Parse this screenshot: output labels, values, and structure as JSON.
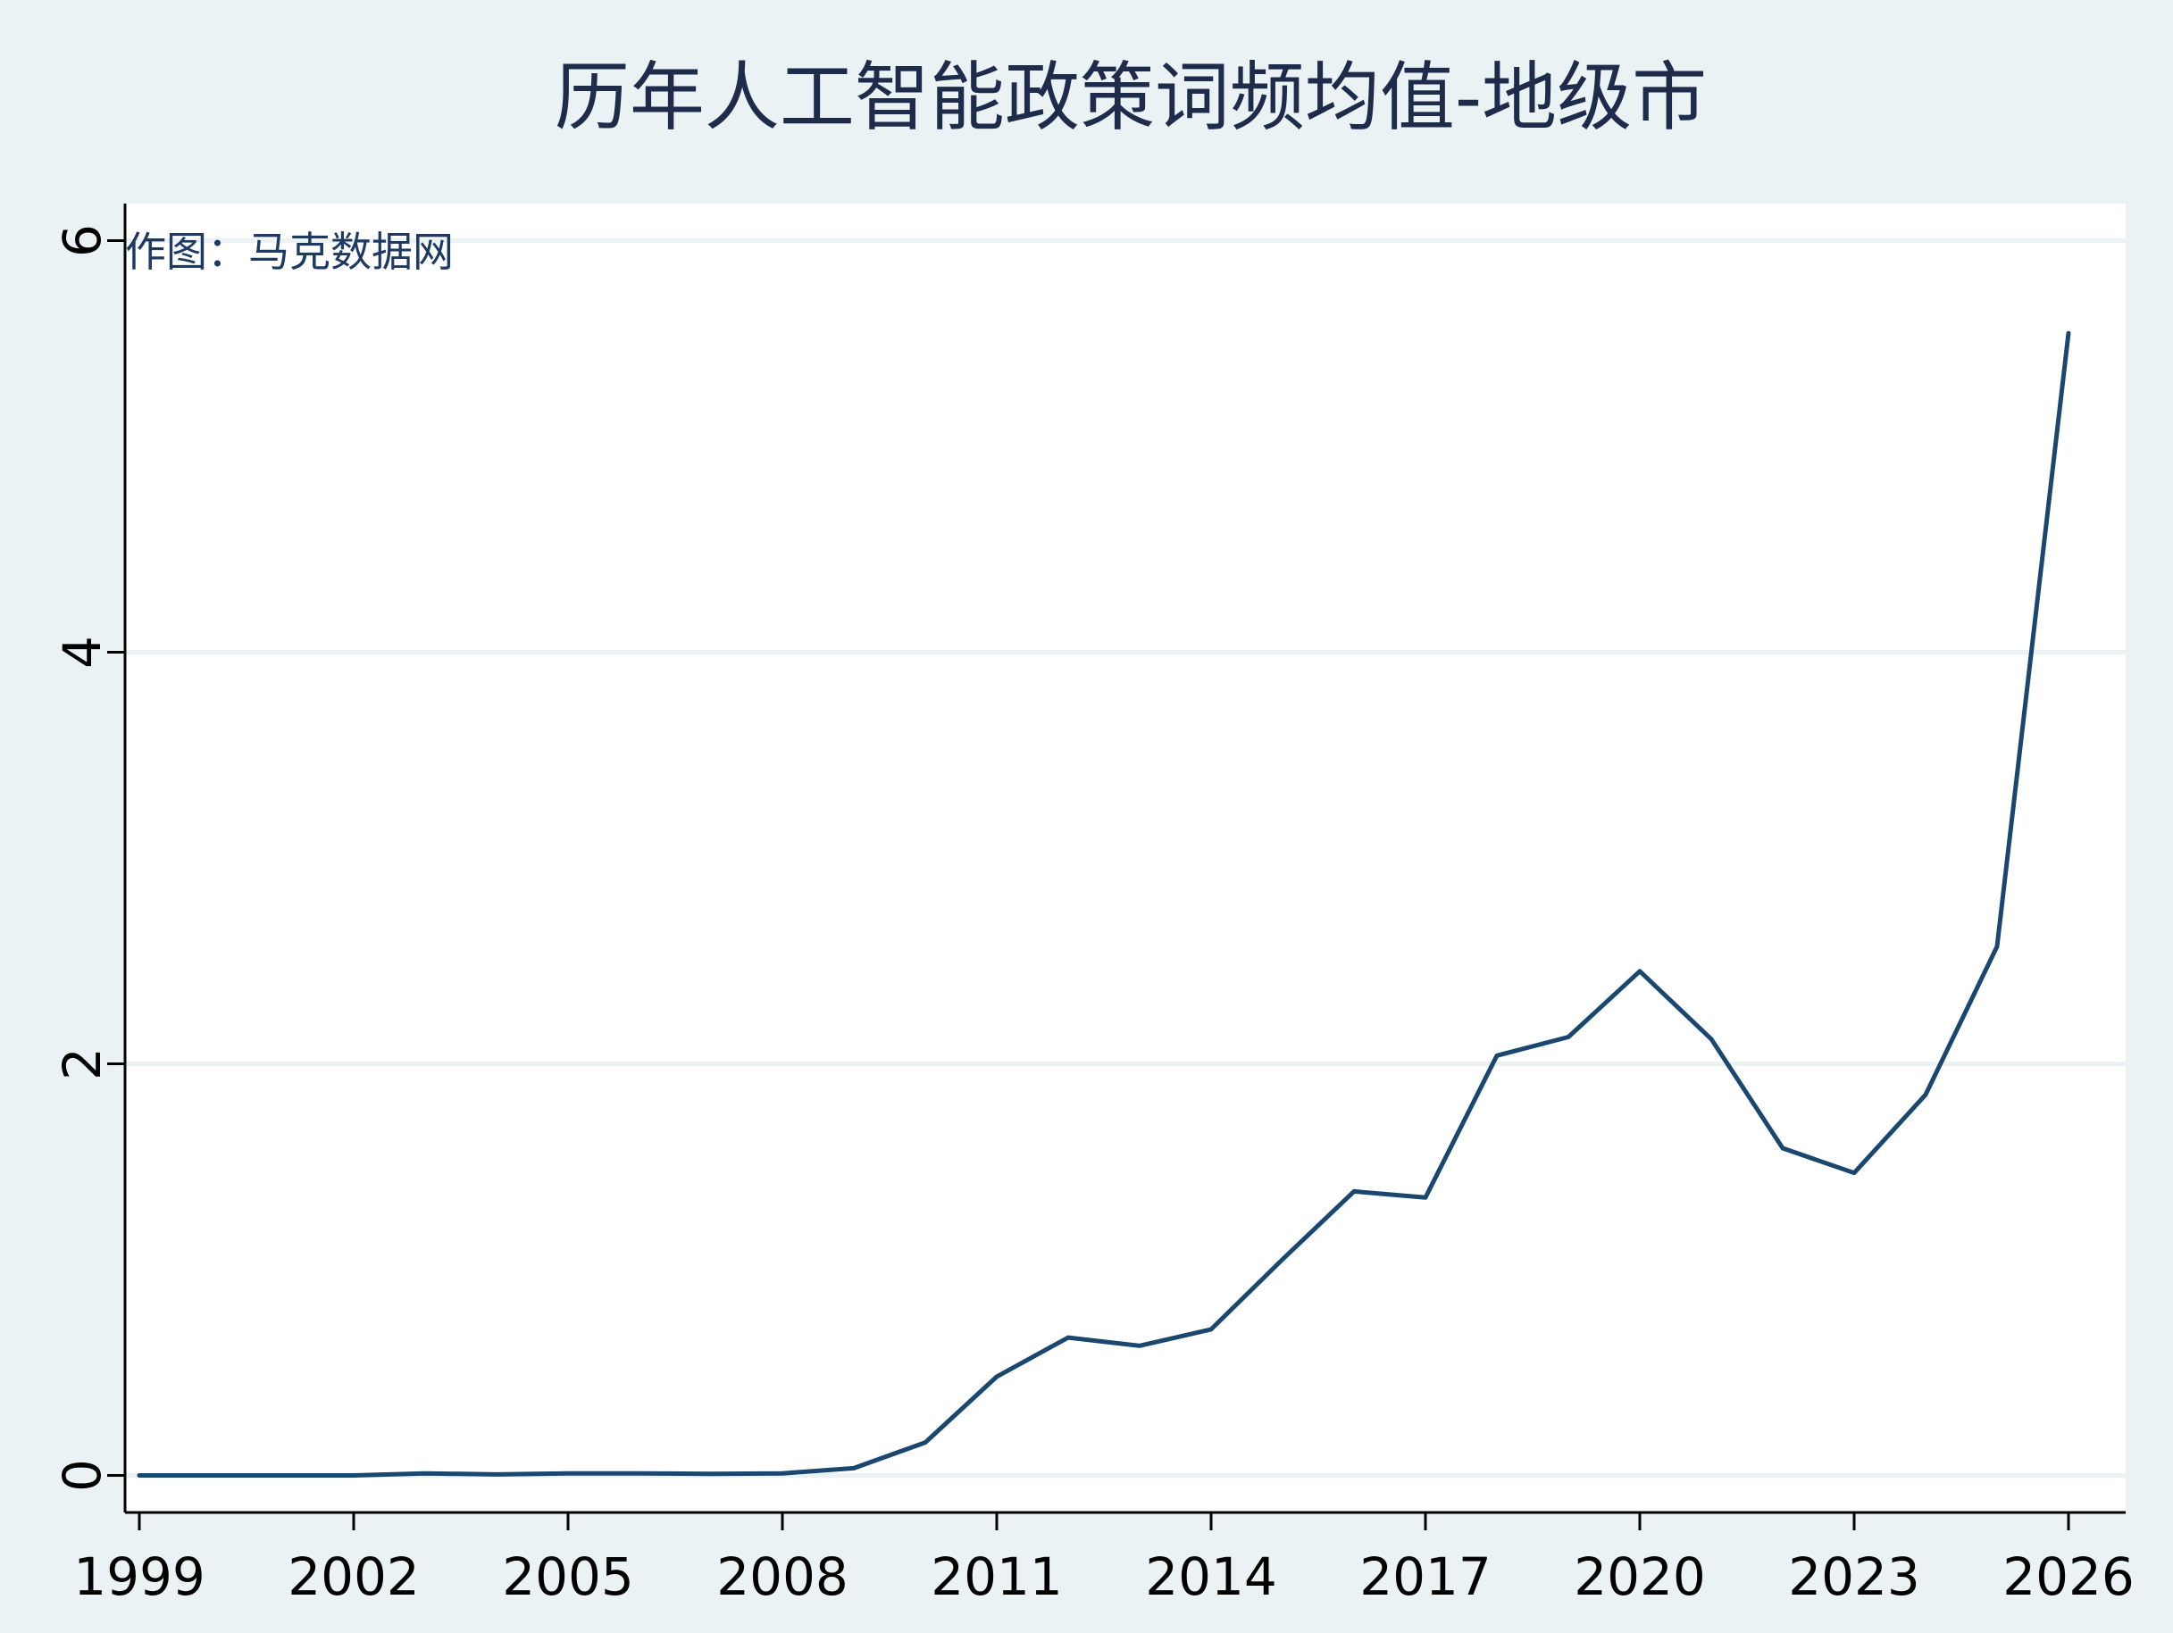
{
  "colors": {
    "background": "#eaf2f3",
    "plot_background": "#ffffff",
    "gridline": "#eaf2f3",
    "axis": "#000000",
    "line": "#1a476f",
    "title": "#1e2b4a",
    "watermark": "#1e3a64"
  },
  "chart_data": {
    "type": "line",
    "title": "历年人工智能政策词频均值-地级市",
    "annotation": "作图：马克数据网",
    "xlabel": "",
    "ylabel": "",
    "xlim": [
      1998.8,
      2026.8
    ],
    "ylim": [
      -0.18,
      6.18
    ],
    "x_ticks": [
      "1999",
      "2002",
      "2005",
      "2008",
      "2011",
      "2014",
      "2017",
      "2020",
      "2023",
      "2026"
    ],
    "y_ticks": [
      "0",
      "2",
      "4",
      "6"
    ],
    "grid": true,
    "x": [
      1999,
      2000,
      2001,
      2002,
      2003,
      2004,
      2005,
      2006,
      2007,
      2008,
      2009,
      2010,
      2011,
      2012,
      2013,
      2014,
      2015,
      2016,
      2017,
      2018,
      2019,
      2020,
      2021,
      2022,
      2023,
      2024,
      2025,
      2026
    ],
    "values": [
      0.0,
      0.0,
      0.0,
      0.0,
      0.01,
      0.005,
      0.01,
      0.01,
      0.008,
      0.01,
      0.035,
      0.16,
      0.48,
      0.67,
      0.63,
      0.71,
      1.05,
      1.38,
      1.35,
      2.04,
      2.13,
      2.45,
      2.12,
      1.59,
      1.47,
      1.85,
      2.57,
      5.55
    ]
  }
}
